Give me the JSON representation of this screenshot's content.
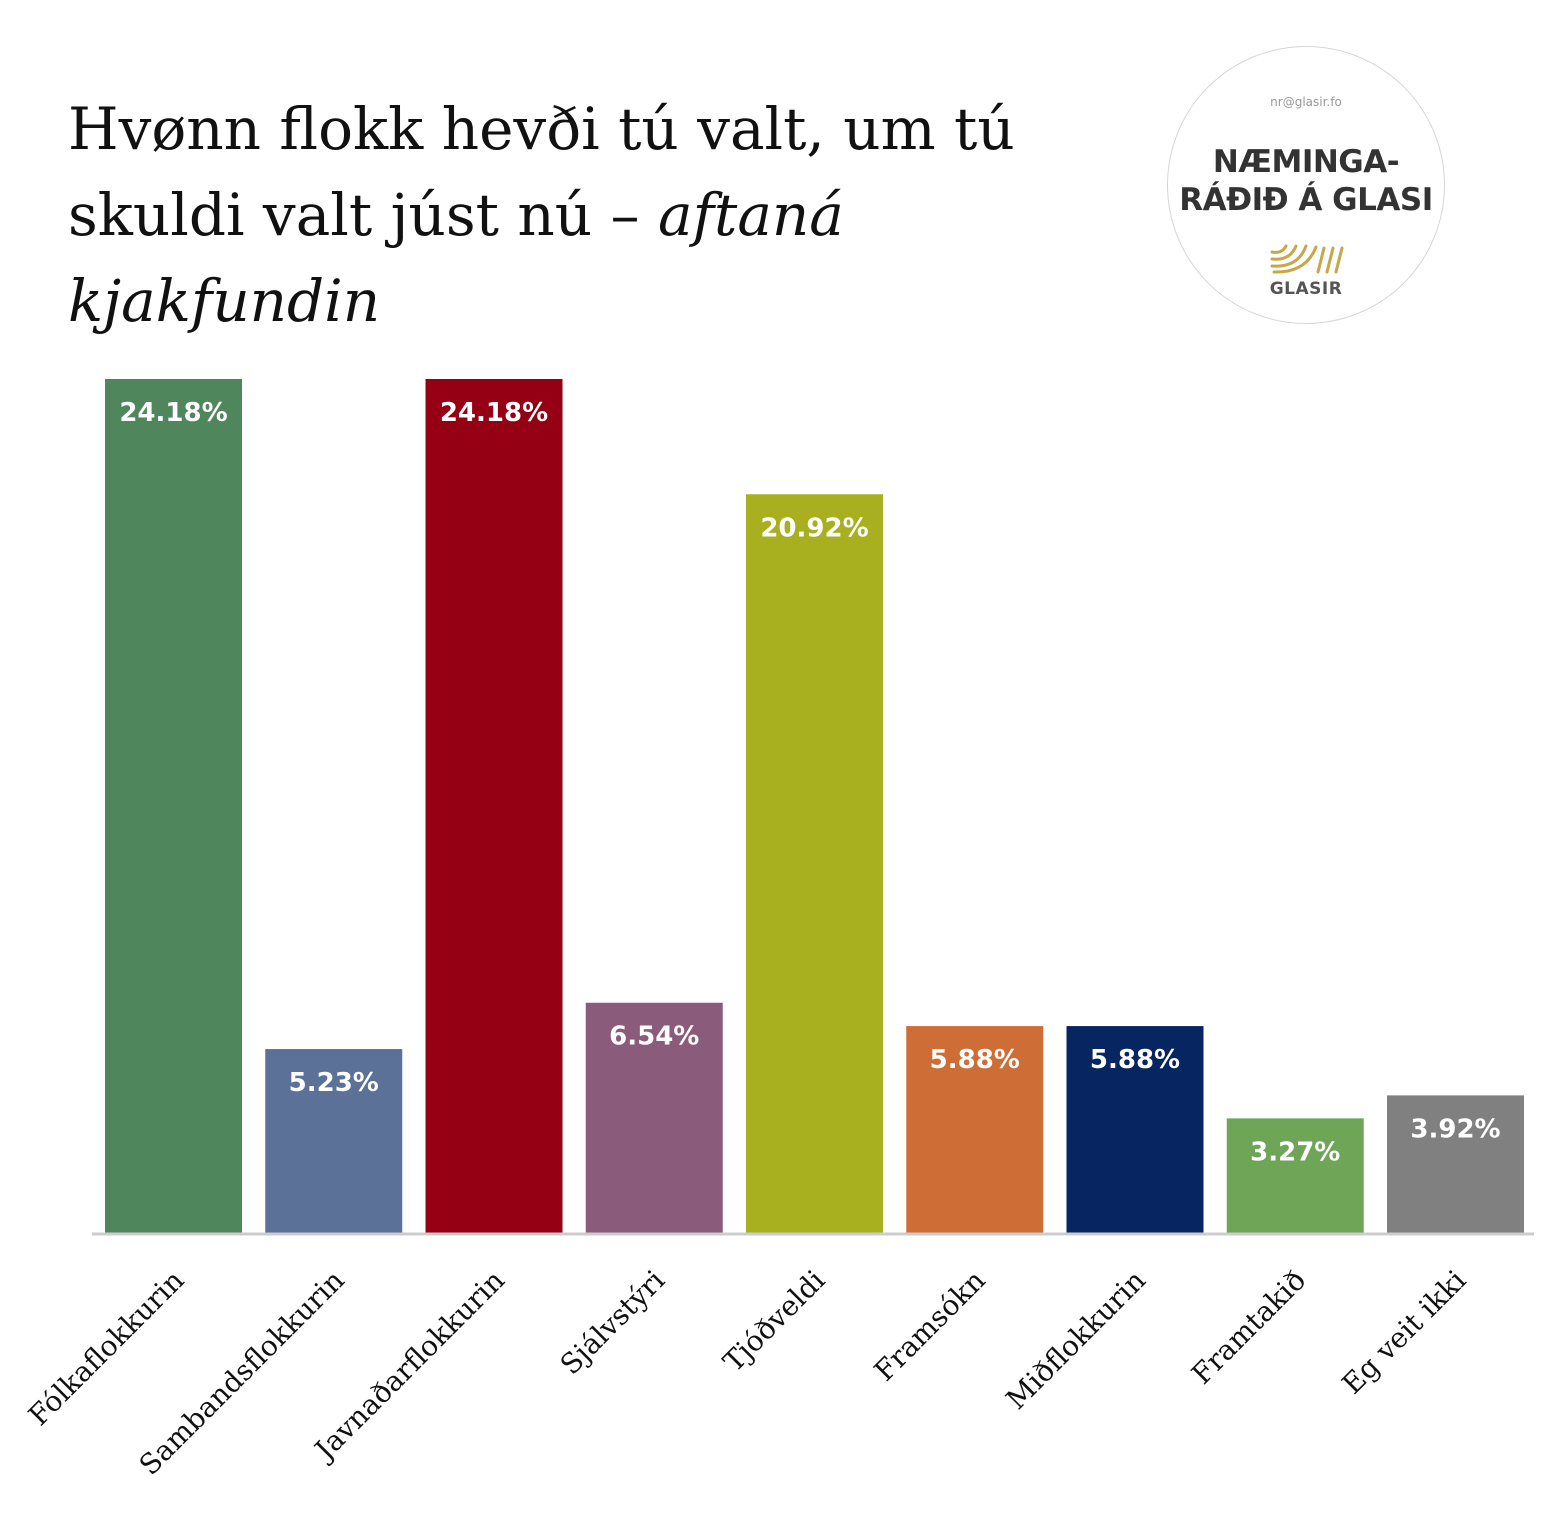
{
  "title": {
    "main": "Hvønn flokk hevði tú valt, um tú skuldi valt júst nú – ",
    "emph": "aftaná kjakfundin"
  },
  "logo": {
    "email": "nr@glasir.fo",
    "line1": "NÆMINGA-",
    "line2": "RÁÐIÐ Á GLASI",
    "brand": "GLASIR"
  },
  "chart_data": {
    "type": "bar",
    "title": "Hvønn flokk hevði tú valt, um tú skuldi valt júst nú – aftaná kjakfundin",
    "categories": [
      "Fólkaflokkurin",
      "Sambandsflokkurin",
      "Javnaðarflokkurin",
      "Sjálvstýri",
      "Tjóðveldi",
      "Framsókn",
      "Miðflokkurin",
      "Framtakið",
      "Eg veit ikki"
    ],
    "values": [
      24.18,
      5.23,
      24.18,
      6.54,
      20.92,
      5.88,
      5.88,
      3.27,
      3.92
    ],
    "labels": [
      "24.18%",
      "5.23%",
      "24.18%",
      "6.54%",
      "20.92%",
      "5.88%",
      "5.88%",
      "3.27%",
      "3.92%"
    ],
    "colors": [
      "#4f865c",
      "#5b7198",
      "#950014",
      "#8b5b7c",
      "#a8b01f",
      "#cf6d36",
      "#072560",
      "#6ea556",
      "#808080"
    ],
    "xlabel": "",
    "ylabel": "",
    "ylim": [
      0,
      24.18
    ],
    "grid": false,
    "legend": "none"
  }
}
